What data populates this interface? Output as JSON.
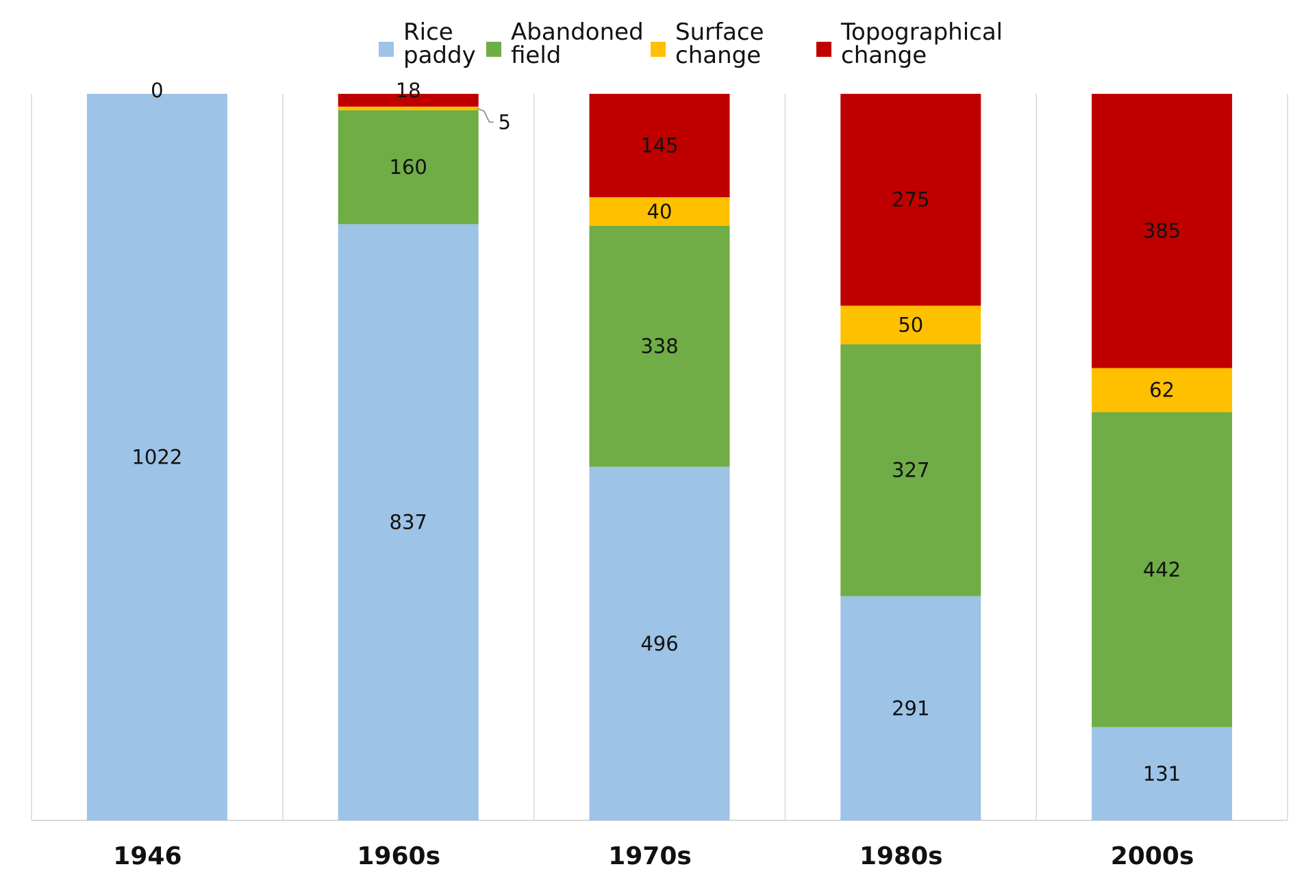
{
  "chart_data": {
    "type": "bar",
    "stacked": "100%",
    "categories": [
      "1946",
      "1960s",
      "1970s",
      "1980s",
      "2000s"
    ],
    "series": [
      {
        "name": "Rice paddy",
        "values": [
          1022,
          837,
          496,
          291,
          131
        ],
        "color": "#9DC3E6"
      },
      {
        "name": "Abandoned field",
        "values": [
          null,
          160,
          338,
          327,
          442
        ],
        "color": "#70AD47"
      },
      {
        "name": "Surface change",
        "values": [
          null,
          5,
          40,
          50,
          62
        ],
        "color": "#FFC000"
      },
      {
        "name": "Topographical change",
        "values": [
          0,
          18,
          145,
          275,
          385
        ],
        "color": "#C00000"
      }
    ],
    "legend": {
      "position": "top",
      "items": [
        {
          "line1": "Rice",
          "line2": "paddy"
        },
        {
          "line1": "Abandoned",
          "line2": "field"
        },
        {
          "line1": "Surface",
          "line2": "change"
        },
        {
          "line1": "Topographical",
          "line2": "change"
        }
      ]
    },
    "title": "",
    "xlabel": "",
    "ylabel": "",
    "ylim": [
      0,
      1
    ],
    "grid": "vertical"
  }
}
